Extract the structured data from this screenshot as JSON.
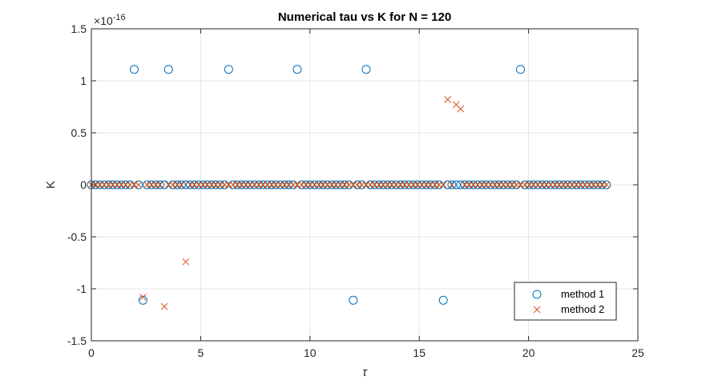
{
  "chart_data": {
    "type": "scatter",
    "title": "Numerical tau vs K for N = 120",
    "xlabel": "τ",
    "ylabel": "K",
    "xlim": [
      0,
      25
    ],
    "ylim": [
      -1.5,
      1.5
    ],
    "y_exponent_label": "×10",
    "y_exponent_power": "-16",
    "y_scale_note": "×10^-16",
    "xticks": [
      0,
      5,
      10,
      15,
      20,
      25
    ],
    "xtick_labels": [
      "0",
      "5",
      "10",
      "15",
      "20",
      "25"
    ],
    "yticks": [
      -1.5,
      -1,
      -0.5,
      0,
      0.5,
      1,
      1.5
    ],
    "ytick_labels": [
      "-1.5",
      "-1",
      "-0.5",
      "0",
      "0.5",
      "1",
      "1.5"
    ],
    "grid": true,
    "legend_position": "bottom-right",
    "series": [
      {
        "name": "method 1",
        "marker": "circle",
        "color": "#0072BD",
        "points": [
          {
            "x": 0.0,
            "y": 0
          },
          {
            "x": 0.2,
            "y": 0
          },
          {
            "x": 0.39,
            "y": 0
          },
          {
            "x": 0.59,
            "y": 0
          },
          {
            "x": 0.79,
            "y": 0
          },
          {
            "x": 0.98,
            "y": 0
          },
          {
            "x": 1.18,
            "y": 0
          },
          {
            "x": 1.37,
            "y": 0
          },
          {
            "x": 1.57,
            "y": 0
          },
          {
            "x": 1.77,
            "y": 0
          },
          {
            "x": 1.96,
            "y": 1.11
          },
          {
            "x": 2.16,
            "y": 0
          },
          {
            "x": 2.36,
            "y": -1.11
          },
          {
            "x": 2.55,
            "y": 0
          },
          {
            "x": 2.75,
            "y": 0
          },
          {
            "x": 2.95,
            "y": 0
          },
          {
            "x": 3.14,
            "y": 0
          },
          {
            "x": 3.34,
            "y": 0
          },
          {
            "x": 3.53,
            "y": 1.11
          },
          {
            "x": 3.73,
            "y": 0
          },
          {
            "x": 3.93,
            "y": 0
          },
          {
            "x": 4.12,
            "y": 0
          },
          {
            "x": 4.32,
            "y": 0
          },
          {
            "x": 4.52,
            "y": 0
          },
          {
            "x": 4.71,
            "y": 0
          },
          {
            "x": 4.91,
            "y": 0
          },
          {
            "x": 5.11,
            "y": 0
          },
          {
            "x": 5.3,
            "y": 0
          },
          {
            "x": 5.5,
            "y": 0
          },
          {
            "x": 5.69,
            "y": 0
          },
          {
            "x": 5.89,
            "y": 0
          },
          {
            "x": 6.09,
            "y": 0
          },
          {
            "x": 6.28,
            "y": 1.11
          },
          {
            "x": 6.48,
            "y": 0
          },
          {
            "x": 6.68,
            "y": 0
          },
          {
            "x": 6.87,
            "y": 0
          },
          {
            "x": 7.07,
            "y": 0
          },
          {
            "x": 7.26,
            "y": 0
          },
          {
            "x": 7.46,
            "y": 0
          },
          {
            "x": 7.66,
            "y": 0
          },
          {
            "x": 7.85,
            "y": 0
          },
          {
            "x": 8.05,
            "y": 0
          },
          {
            "x": 8.25,
            "y": 0
          },
          {
            "x": 8.44,
            "y": 0
          },
          {
            "x": 8.64,
            "y": 0
          },
          {
            "x": 8.84,
            "y": 0
          },
          {
            "x": 9.03,
            "y": 0
          },
          {
            "x": 9.23,
            "y": 0
          },
          {
            "x": 9.42,
            "y": 1.11
          },
          {
            "x": 9.62,
            "y": 0
          },
          {
            "x": 9.82,
            "y": 0
          },
          {
            "x": 10.01,
            "y": 0
          },
          {
            "x": 10.21,
            "y": 0
          },
          {
            "x": 10.41,
            "y": 0
          },
          {
            "x": 10.6,
            "y": 0
          },
          {
            "x": 10.8,
            "y": 0
          },
          {
            "x": 11.0,
            "y": 0
          },
          {
            "x": 11.19,
            "y": 0
          },
          {
            "x": 11.39,
            "y": 0
          },
          {
            "x": 11.58,
            "y": 0
          },
          {
            "x": 11.78,
            "y": 0
          },
          {
            "x": 11.98,
            "y": -1.11
          },
          {
            "x": 12.17,
            "y": 0
          },
          {
            "x": 12.37,
            "y": 0
          },
          {
            "x": 12.57,
            "y": 1.11
          },
          {
            "x": 12.76,
            "y": 0
          },
          {
            "x": 12.96,
            "y": 0
          },
          {
            "x": 13.16,
            "y": 0
          },
          {
            "x": 13.35,
            "y": 0
          },
          {
            "x": 13.55,
            "y": 0
          },
          {
            "x": 13.74,
            "y": 0
          },
          {
            "x": 13.94,
            "y": 0
          },
          {
            "x": 14.14,
            "y": 0
          },
          {
            "x": 14.33,
            "y": 0
          },
          {
            "x": 14.53,
            "y": 0
          },
          {
            "x": 14.73,
            "y": 0
          },
          {
            "x": 14.92,
            "y": 0
          },
          {
            "x": 15.12,
            "y": 0
          },
          {
            "x": 15.32,
            "y": 0
          },
          {
            "x": 15.51,
            "y": 0
          },
          {
            "x": 15.71,
            "y": 0
          },
          {
            "x": 15.9,
            "y": 0
          },
          {
            "x": 16.1,
            "y": -1.11
          },
          {
            "x": 16.3,
            "y": 0
          },
          {
            "x": 16.49,
            "y": 0
          },
          {
            "x": 16.69,
            "y": 0
          },
          {
            "x": 16.89,
            "y": 0
          },
          {
            "x": 17.08,
            "y": 0
          },
          {
            "x": 17.28,
            "y": 0
          },
          {
            "x": 17.47,
            "y": 0
          },
          {
            "x": 17.67,
            "y": 0
          },
          {
            "x": 17.87,
            "y": 0
          },
          {
            "x": 18.06,
            "y": 0
          },
          {
            "x": 18.26,
            "y": 0
          },
          {
            "x": 18.46,
            "y": 0
          },
          {
            "x": 18.65,
            "y": 0
          },
          {
            "x": 18.85,
            "y": 0
          },
          {
            "x": 19.05,
            "y": 0
          },
          {
            "x": 19.24,
            "y": 0
          },
          {
            "x": 19.44,
            "y": 0
          },
          {
            "x": 19.63,
            "y": 1.11
          },
          {
            "x": 19.83,
            "y": 0
          },
          {
            "x": 20.03,
            "y": 0
          },
          {
            "x": 20.22,
            "y": 0
          },
          {
            "x": 20.42,
            "y": 0
          },
          {
            "x": 20.62,
            "y": 0
          },
          {
            "x": 20.81,
            "y": 0
          },
          {
            "x": 21.01,
            "y": 0
          },
          {
            "x": 21.21,
            "y": 0
          },
          {
            "x": 21.4,
            "y": 0
          },
          {
            "x": 21.6,
            "y": 0
          },
          {
            "x": 21.79,
            "y": 0
          },
          {
            "x": 21.99,
            "y": 0
          },
          {
            "x": 22.19,
            "y": 0
          },
          {
            "x": 22.38,
            "y": 0
          },
          {
            "x": 22.58,
            "y": 0
          },
          {
            "x": 22.78,
            "y": 0
          },
          {
            "x": 22.97,
            "y": 0
          },
          {
            "x": 23.17,
            "y": 0
          },
          {
            "x": 23.36,
            "y": 0
          },
          {
            "x": 23.56,
            "y": 0
          }
        ]
      },
      {
        "name": "method 2",
        "marker": "x",
        "color": "#D95319",
        "points": [
          {
            "x": 0.0,
            "y": 0
          },
          {
            "x": 0.2,
            "y": 0
          },
          {
            "x": 0.39,
            "y": 0
          },
          {
            "x": 0.59,
            "y": 0
          },
          {
            "x": 0.79,
            "y": 0
          },
          {
            "x": 0.98,
            "y": 0
          },
          {
            "x": 1.18,
            "y": 0
          },
          {
            "x": 1.37,
            "y": 0
          },
          {
            "x": 1.57,
            "y": 0
          },
          {
            "x": 1.77,
            "y": 0
          },
          {
            "x": 1.96,
            "y": 0
          },
          {
            "x": 2.16,
            "y": 0
          },
          {
            "x": 2.36,
            "y": -1.08
          },
          {
            "x": 2.55,
            "y": 0
          },
          {
            "x": 2.75,
            "y": 0
          },
          {
            "x": 2.95,
            "y": 0
          },
          {
            "x": 3.14,
            "y": 0
          },
          {
            "x": 3.34,
            "y": -1.17
          },
          {
            "x": 3.53,
            "y": 0
          },
          {
            "x": 3.73,
            "y": 0
          },
          {
            "x": 3.93,
            "y": 0
          },
          {
            "x": 4.12,
            "y": 0
          },
          {
            "x": 4.32,
            "y": -0.74
          },
          {
            "x": 4.52,
            "y": 0
          },
          {
            "x": 4.71,
            "y": 0
          },
          {
            "x": 4.91,
            "y": 0
          },
          {
            "x": 5.11,
            "y": 0
          },
          {
            "x": 5.3,
            "y": 0
          },
          {
            "x": 5.5,
            "y": 0
          },
          {
            "x": 5.69,
            "y": 0
          },
          {
            "x": 5.89,
            "y": 0
          },
          {
            "x": 6.09,
            "y": 0
          },
          {
            "x": 6.28,
            "y": 0
          },
          {
            "x": 6.48,
            "y": 0
          },
          {
            "x": 6.68,
            "y": 0
          },
          {
            "x": 6.87,
            "y": 0
          },
          {
            "x": 7.07,
            "y": 0
          },
          {
            "x": 7.26,
            "y": 0
          },
          {
            "x": 7.46,
            "y": 0
          },
          {
            "x": 7.66,
            "y": 0
          },
          {
            "x": 7.85,
            "y": 0
          },
          {
            "x": 8.05,
            "y": 0
          },
          {
            "x": 8.25,
            "y": 0
          },
          {
            "x": 8.44,
            "y": 0
          },
          {
            "x": 8.64,
            "y": 0
          },
          {
            "x": 8.84,
            "y": 0
          },
          {
            "x": 9.03,
            "y": 0
          },
          {
            "x": 9.23,
            "y": 0
          },
          {
            "x": 9.42,
            "y": 0
          },
          {
            "x": 9.62,
            "y": 0
          },
          {
            "x": 9.82,
            "y": 0
          },
          {
            "x": 10.01,
            "y": 0
          },
          {
            "x": 10.21,
            "y": 0
          },
          {
            "x": 10.41,
            "y": 0
          },
          {
            "x": 10.6,
            "y": 0
          },
          {
            "x": 10.8,
            "y": 0
          },
          {
            "x": 11.0,
            "y": 0
          },
          {
            "x": 11.19,
            "y": 0
          },
          {
            "x": 11.39,
            "y": 0
          },
          {
            "x": 11.58,
            "y": 0
          },
          {
            "x": 11.78,
            "y": 0
          },
          {
            "x": 11.98,
            "y": 0
          },
          {
            "x": 12.17,
            "y": 0
          },
          {
            "x": 12.37,
            "y": 0
          },
          {
            "x": 12.57,
            "y": 0
          },
          {
            "x": 12.76,
            "y": 0
          },
          {
            "x": 12.96,
            "y": 0
          },
          {
            "x": 13.16,
            "y": 0
          },
          {
            "x": 13.35,
            "y": 0
          },
          {
            "x": 13.55,
            "y": 0
          },
          {
            "x": 13.74,
            "y": 0
          },
          {
            "x": 13.94,
            "y": 0
          },
          {
            "x": 14.14,
            "y": 0
          },
          {
            "x": 14.33,
            "y": 0
          },
          {
            "x": 14.53,
            "y": 0
          },
          {
            "x": 14.73,
            "y": 0
          },
          {
            "x": 14.92,
            "y": 0
          },
          {
            "x": 15.12,
            "y": 0
          },
          {
            "x": 15.32,
            "y": 0
          },
          {
            "x": 15.51,
            "y": 0
          },
          {
            "x": 15.71,
            "y": 0
          },
          {
            "x": 15.9,
            "y": 0
          },
          {
            "x": 16.1,
            "y": 0
          },
          {
            "x": 16.3,
            "y": 0.82
          },
          {
            "x": 16.49,
            "y": 0
          },
          {
            "x": 16.69,
            "y": 0.77
          },
          {
            "x": 16.89,
            "y": 0.73
          },
          {
            "x": 17.08,
            "y": 0
          },
          {
            "x": 17.28,
            "y": 0
          },
          {
            "x": 17.47,
            "y": 0
          },
          {
            "x": 17.67,
            "y": 0
          },
          {
            "x": 17.87,
            "y": 0
          },
          {
            "x": 18.06,
            "y": 0
          },
          {
            "x": 18.26,
            "y": 0
          },
          {
            "x": 18.46,
            "y": 0
          },
          {
            "x": 18.65,
            "y": 0
          },
          {
            "x": 18.85,
            "y": 0
          },
          {
            "x": 19.05,
            "y": 0
          },
          {
            "x": 19.24,
            "y": 0
          },
          {
            "x": 19.44,
            "y": 0
          },
          {
            "x": 19.63,
            "y": 0
          },
          {
            "x": 19.83,
            "y": 0
          },
          {
            "x": 20.03,
            "y": 0
          },
          {
            "x": 20.22,
            "y": 0
          },
          {
            "x": 20.42,
            "y": 0
          },
          {
            "x": 20.62,
            "y": 0
          },
          {
            "x": 20.81,
            "y": 0
          },
          {
            "x": 21.01,
            "y": 0
          },
          {
            "x": 21.21,
            "y": 0
          },
          {
            "x": 21.4,
            "y": 0
          },
          {
            "x": 21.6,
            "y": 0
          },
          {
            "x": 21.79,
            "y": 0
          },
          {
            "x": 21.99,
            "y": 0
          },
          {
            "x": 22.19,
            "y": 0
          },
          {
            "x": 22.38,
            "y": 0
          },
          {
            "x": 22.58,
            "y": 0
          },
          {
            "x": 22.78,
            "y": 0
          },
          {
            "x": 22.97,
            "y": 0
          },
          {
            "x": 23.17,
            "y": 0
          },
          {
            "x": 23.36,
            "y": 0
          },
          {
            "x": 23.56,
            "y": 0
          }
        ]
      }
    ]
  }
}
